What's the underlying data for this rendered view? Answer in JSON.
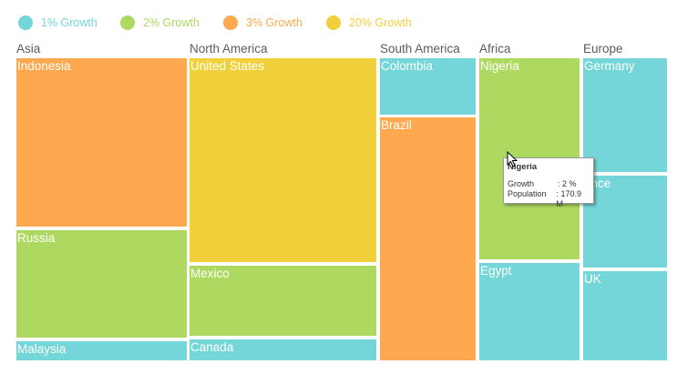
{
  "colors": {
    "growth_1": "#74d6d8",
    "growth_2": "#aed961",
    "growth_3": "#fea94f",
    "growth_20": "#f1d03c"
  },
  "legend": [
    {
      "label": "1% Growth",
      "color": "#74d6d8"
    },
    {
      "label": "2% Growth",
      "color": "#aed961"
    },
    {
      "label": "3% Growth",
      "color": "#fea94f"
    },
    {
      "label": "20% Growth",
      "color": "#f1d03c"
    }
  ],
  "chart_data": {
    "type": "treemap",
    "title": "",
    "size_metric": "Population",
    "color_metric": "Growth",
    "groups": [
      {
        "name": "Asia",
        "items": [
          {
            "name": "Indonesia",
            "growth": 3
          },
          {
            "name": "Russia",
            "growth": 2
          },
          {
            "name": "Malaysia",
            "growth": 1
          }
        ]
      },
      {
        "name": "North America",
        "items": [
          {
            "name": "United States",
            "growth": 20
          },
          {
            "name": "Mexico",
            "growth": 2
          },
          {
            "name": "Canada",
            "growth": 1
          }
        ]
      },
      {
        "name": "South America",
        "items": [
          {
            "name": "Colombia",
            "growth": 1
          },
          {
            "name": "Brazil",
            "growth": 3
          }
        ]
      },
      {
        "name": "Africa",
        "items": [
          {
            "name": "Nigeria",
            "growth": 2,
            "population": "170.9 M"
          },
          {
            "name": "Egypt",
            "growth": 1
          }
        ]
      },
      {
        "name": "Europe",
        "items": [
          {
            "name": "Germany",
            "growth": 1
          },
          {
            "name": "France",
            "growth": 1,
            "label_shown": "ance"
          },
          {
            "name": "UK",
            "growth": 1
          }
        ]
      }
    ]
  },
  "tooltip": {
    "title": "Nigeria",
    "rows": [
      {
        "key": "Growth",
        "value": ": 2 %"
      },
      {
        "key": "Population",
        "value": ": 170.9 M"
      }
    ]
  }
}
